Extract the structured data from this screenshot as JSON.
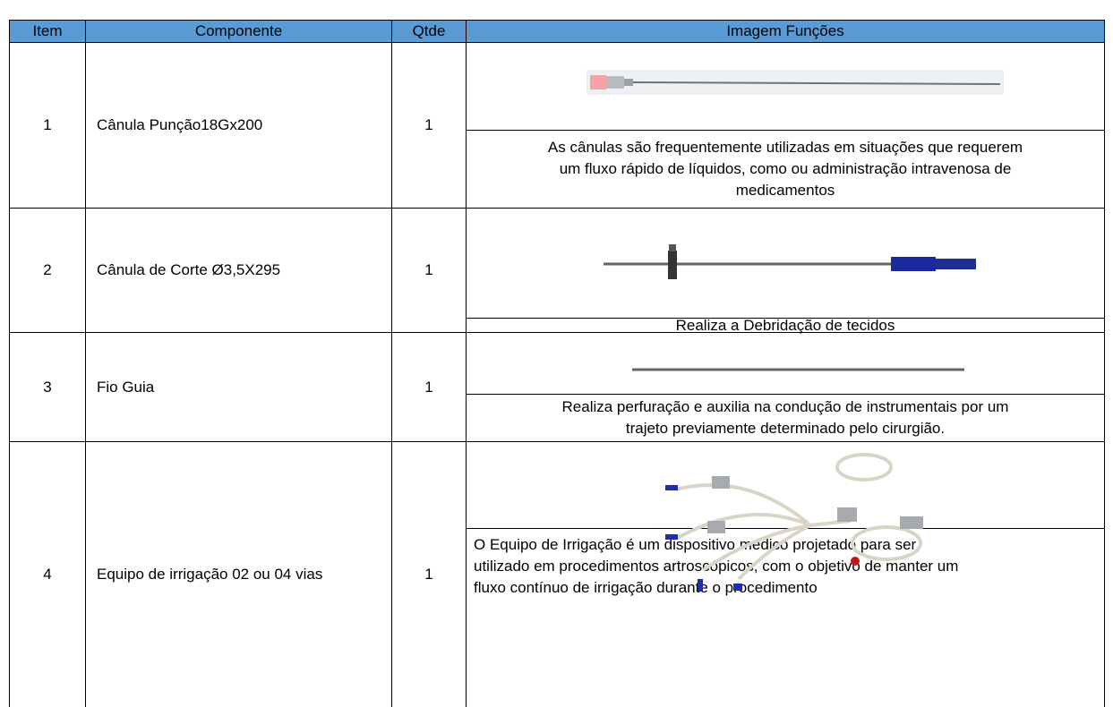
{
  "table": {
    "header": [
      "Item",
      "Componente",
      "Qtde",
      "Imagem Funções"
    ],
    "rows": [
      {
        "item": 1,
        "component": "Cânula Punção18Gx200",
        "qty": 1,
        "function": [
          "As cânulas são frequentemente utilizadas em situações que requerem",
          "um fluxo rápido de líquidos, como ou administração intravenosa de",
          "medicamentos"
        ]
      },
      {
        "item": 2,
        "component": "Cânula de Corte Ø3,5X295",
        "qty": 1,
        "function": [
          "Realiza a Debridação de tecidos"
        ]
      },
      {
        "item": 3,
        "component": "Fio Guia",
        "qty": 1,
        "function": [
          "Realiza perfuração e auxilia na condução de instrumentais por um",
          "trajeto previamente determinado pelo cirurgião."
        ]
      },
      {
        "item": 4,
        "component": "Equipo de irrigação 02 ou 04 vias",
        "qty": 1,
        "function": [
          "O Equipo de Irrigação é um dispositivo médico projetado para ser",
          "utilizado em procedimentos artroscópicos, com o objetivo de manter um",
          "fluxo contínuo de irrigação durante o procedimento"
        ]
      }
    ]
  }
}
